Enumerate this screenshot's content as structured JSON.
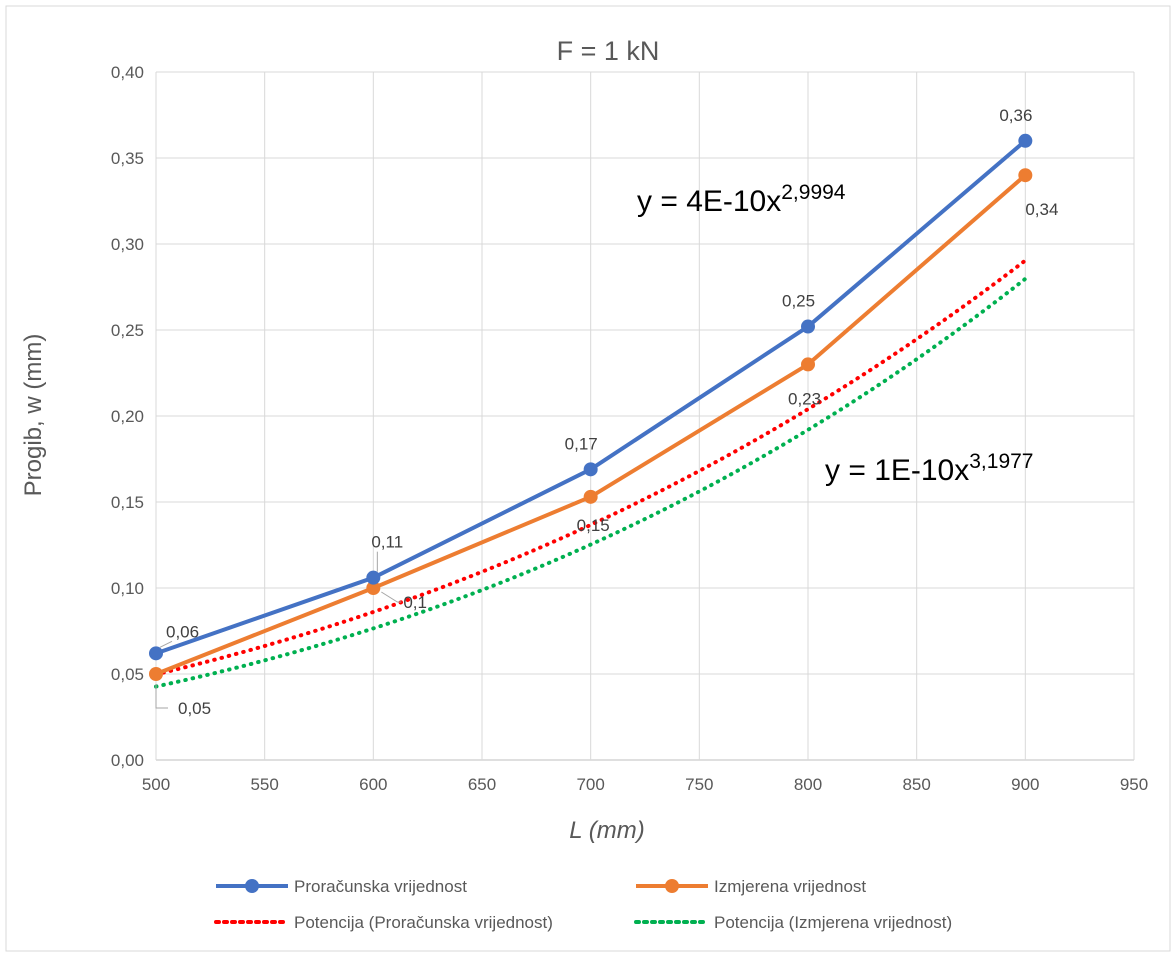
{
  "chart_data": {
    "type": "line",
    "title": "F = 1 kN",
    "xlabel": "L (mm)",
    "ylabel": "Progib, w (mm)",
    "xlim": [
      500,
      950
    ],
    "ylim": [
      0,
      0.4
    ],
    "x_ticks": [
      "500",
      "550",
      "600",
      "650",
      "700",
      "750",
      "800",
      "850",
      "900",
      "950"
    ],
    "y_ticks": [
      "0,00",
      "0,05",
      "0,10",
      "0,15",
      "0,20",
      "0,25",
      "0,30",
      "0,35",
      "0,40"
    ],
    "grid": true,
    "legend_position": "bottom",
    "x": [
      500,
      600,
      700,
      800,
      900
    ],
    "series": [
      {
        "name": "Proračunska vrijednost",
        "values": [
          0.062,
          0.106,
          0.169,
          0.252,
          0.36
        ],
        "labels": [
          "0,06",
          "0,11",
          "0,17",
          "0,25",
          "0,36"
        ],
        "color": "#4472C4",
        "style": "line-marker"
      },
      {
        "name": "Izmjerena vrijednost",
        "values": [
          0.05,
          0.1,
          0.153,
          0.23,
          0.34
        ],
        "labels": [
          "0,05",
          "0,1",
          "0,15",
          "0,23",
          "0,34"
        ],
        "color": "#ED7D31",
        "style": "line-marker"
      },
      {
        "name": "Potencija (Proračunska vrijednost)",
        "trend_of": 0,
        "a": 4e-10,
        "b": 2.9994,
        "color": "#FF0000",
        "style": "dotted"
      },
      {
        "name": "Potencija (Izmjerena vrijednost)",
        "trend_of": 1,
        "a": 1e-10,
        "b": 3.1977,
        "color": "#00B050",
        "style": "dotted"
      }
    ],
    "equations": [
      {
        "base": "y = 4E-10x",
        "exponent": "2,9994",
        "color": "#FF0000"
      },
      {
        "base": "y = 1E-10x",
        "exponent": "3,1977",
        "color": "#00B050"
      }
    ]
  }
}
